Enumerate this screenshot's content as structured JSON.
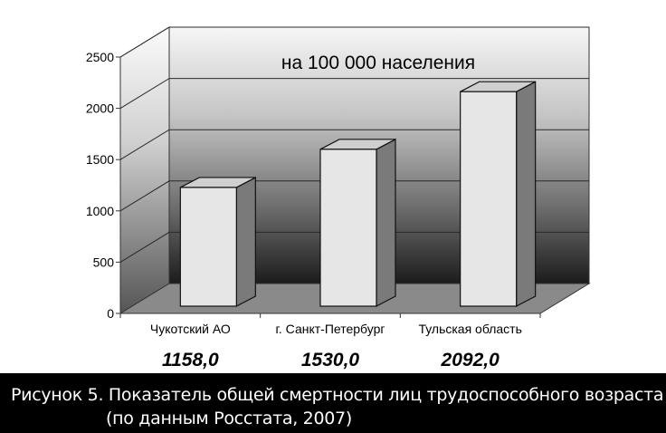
{
  "chart_data": {
    "type": "bar",
    "title": "на 100 000 населения",
    "categories": [
      "Чукотский АО",
      "г. Санкт-Петербург",
      "Тульская область"
    ],
    "values": [
      1158,
      1530,
      2092
    ],
    "value_labels": [
      "1158,0",
      "1530,0",
      "2092,0"
    ],
    "ylim": [
      0,
      2500
    ],
    "yticks": [
      0,
      500,
      1000,
      1500,
      2000,
      2500
    ],
    "grid": true,
    "style": "3d"
  },
  "caption": {
    "line1": "Рисунок 5. Показатель общей смертности лиц трудоспособного возраста",
    "line2": "(по данным Росстата, 2007)"
  }
}
